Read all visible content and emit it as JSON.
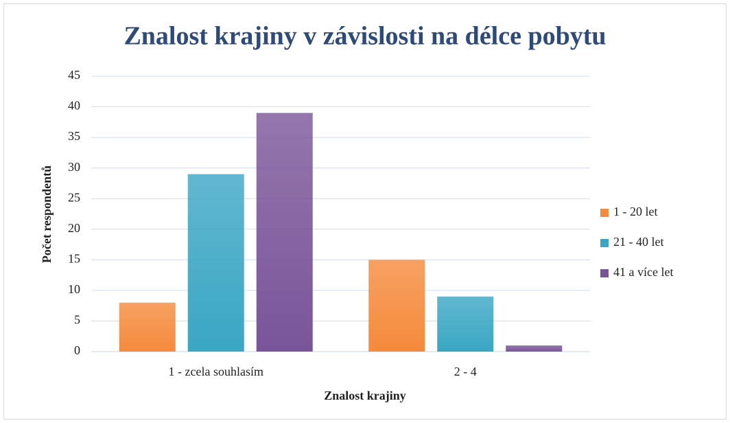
{
  "chart_data": {
    "type": "bar",
    "title": "Znalost krajiny v závislosti na délce pobytu",
    "x_label": "Znalost krajiny",
    "y_label": "Počet respondentů",
    "categories": [
      "1 - zcela souhlasím",
      "2 - 4"
    ],
    "series": [
      {
        "name": "1 - 20 let",
        "color": "#f58a3c",
        "values": [
          8,
          15
        ]
      },
      {
        "name": "21 - 40 let",
        "color": "#3aa6c4",
        "values": [
          29,
          9
        ]
      },
      {
        "name": "41 a více let",
        "color": "#7a5499",
        "values": [
          39,
          1
        ]
      }
    ],
    "ylim": [
      0,
      45
    ],
    "yticks": [
      0,
      5,
      10,
      15,
      20,
      25,
      30,
      35,
      40,
      45
    ],
    "grid": true,
    "legend": "right"
  }
}
